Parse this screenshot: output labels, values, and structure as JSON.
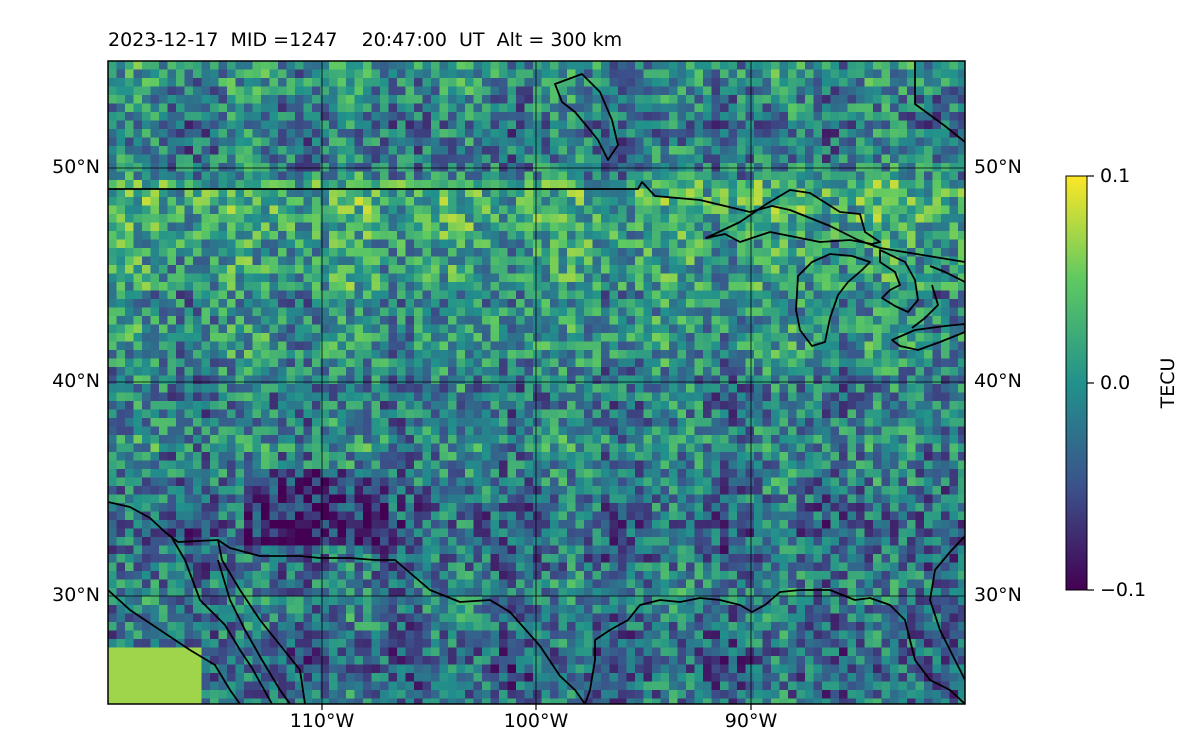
{
  "title": "2023-12-17  MID =1247    20:47:00  UT  Alt = 300 km",
  "map": {
    "projection": "equirectangular",
    "lon_range": [
      -120,
      -80
    ],
    "lat_range": [
      25,
      55
    ],
    "lat_ticks": [
      "50°N",
      "40°N",
      "30°N"
    ],
    "lon_ticks": [
      "110°W",
      "100°W",
      "90°W"
    ],
    "gridlines": true,
    "coastlines": true,
    "borders": true
  },
  "colorbar": {
    "label": "TECU",
    "min": -0.1,
    "max": 0.1,
    "ticks": [
      "0.1",
      "0.0",
      "−0.1"
    ],
    "colormap": "viridis",
    "colors": [
      "#440154",
      "#3b528b",
      "#21918c",
      "#5ec962",
      "#fde725"
    ]
  }
}
